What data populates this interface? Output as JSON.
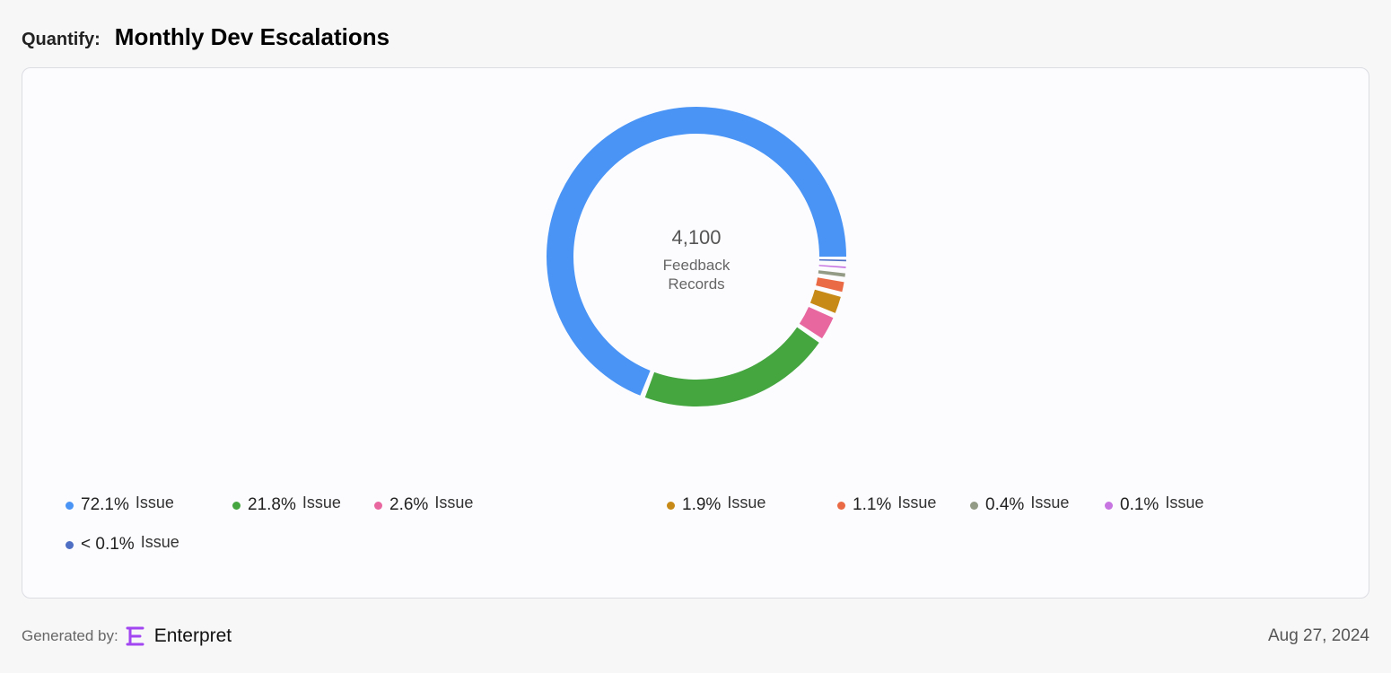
{
  "header": {
    "label": "Quantify:",
    "title": "Monthly Dev Escalations"
  },
  "chart_data": {
    "type": "pie",
    "variant": "donut",
    "center_value": "4,100",
    "center_label_line1": "Feedback",
    "center_label_line2": "Records",
    "legend_position": "bottom",
    "slices": [
      {
        "pct_label": "72.1%",
        "name": "Issue",
        "value": 72.1,
        "color": "#4a94f5"
      },
      {
        "pct_label": "21.8%",
        "name": "Issue",
        "value": 21.8,
        "color": "#45a640"
      },
      {
        "pct_label": "2.6%",
        "name": "Issue",
        "value": 2.6,
        "color": "#e8679f"
      },
      {
        "pct_label": "1.9%",
        "name": "Issue",
        "value": 1.9,
        "color": "#c78a16"
      },
      {
        "pct_label": "1.1%",
        "name": "Issue",
        "value": 1.1,
        "color": "#ea6a45"
      },
      {
        "pct_label": "0.4%",
        "name": "Issue",
        "value": 0.4,
        "color": "#939a85"
      },
      {
        "pct_label": "0.1%",
        "name": "Issue",
        "value": 0.1,
        "color": "#c775e0"
      },
      {
        "pct_label": "< 0.1%",
        "name": "Issue",
        "value": 0.02,
        "color": "#4f6fc4"
      }
    ]
  },
  "footer": {
    "generated_label": "Generated by:",
    "brand": "Enterpret",
    "brand_color": "#a146f0",
    "logo_icon": "enterpret-logo-icon",
    "date": "Aug 27, 2024"
  }
}
